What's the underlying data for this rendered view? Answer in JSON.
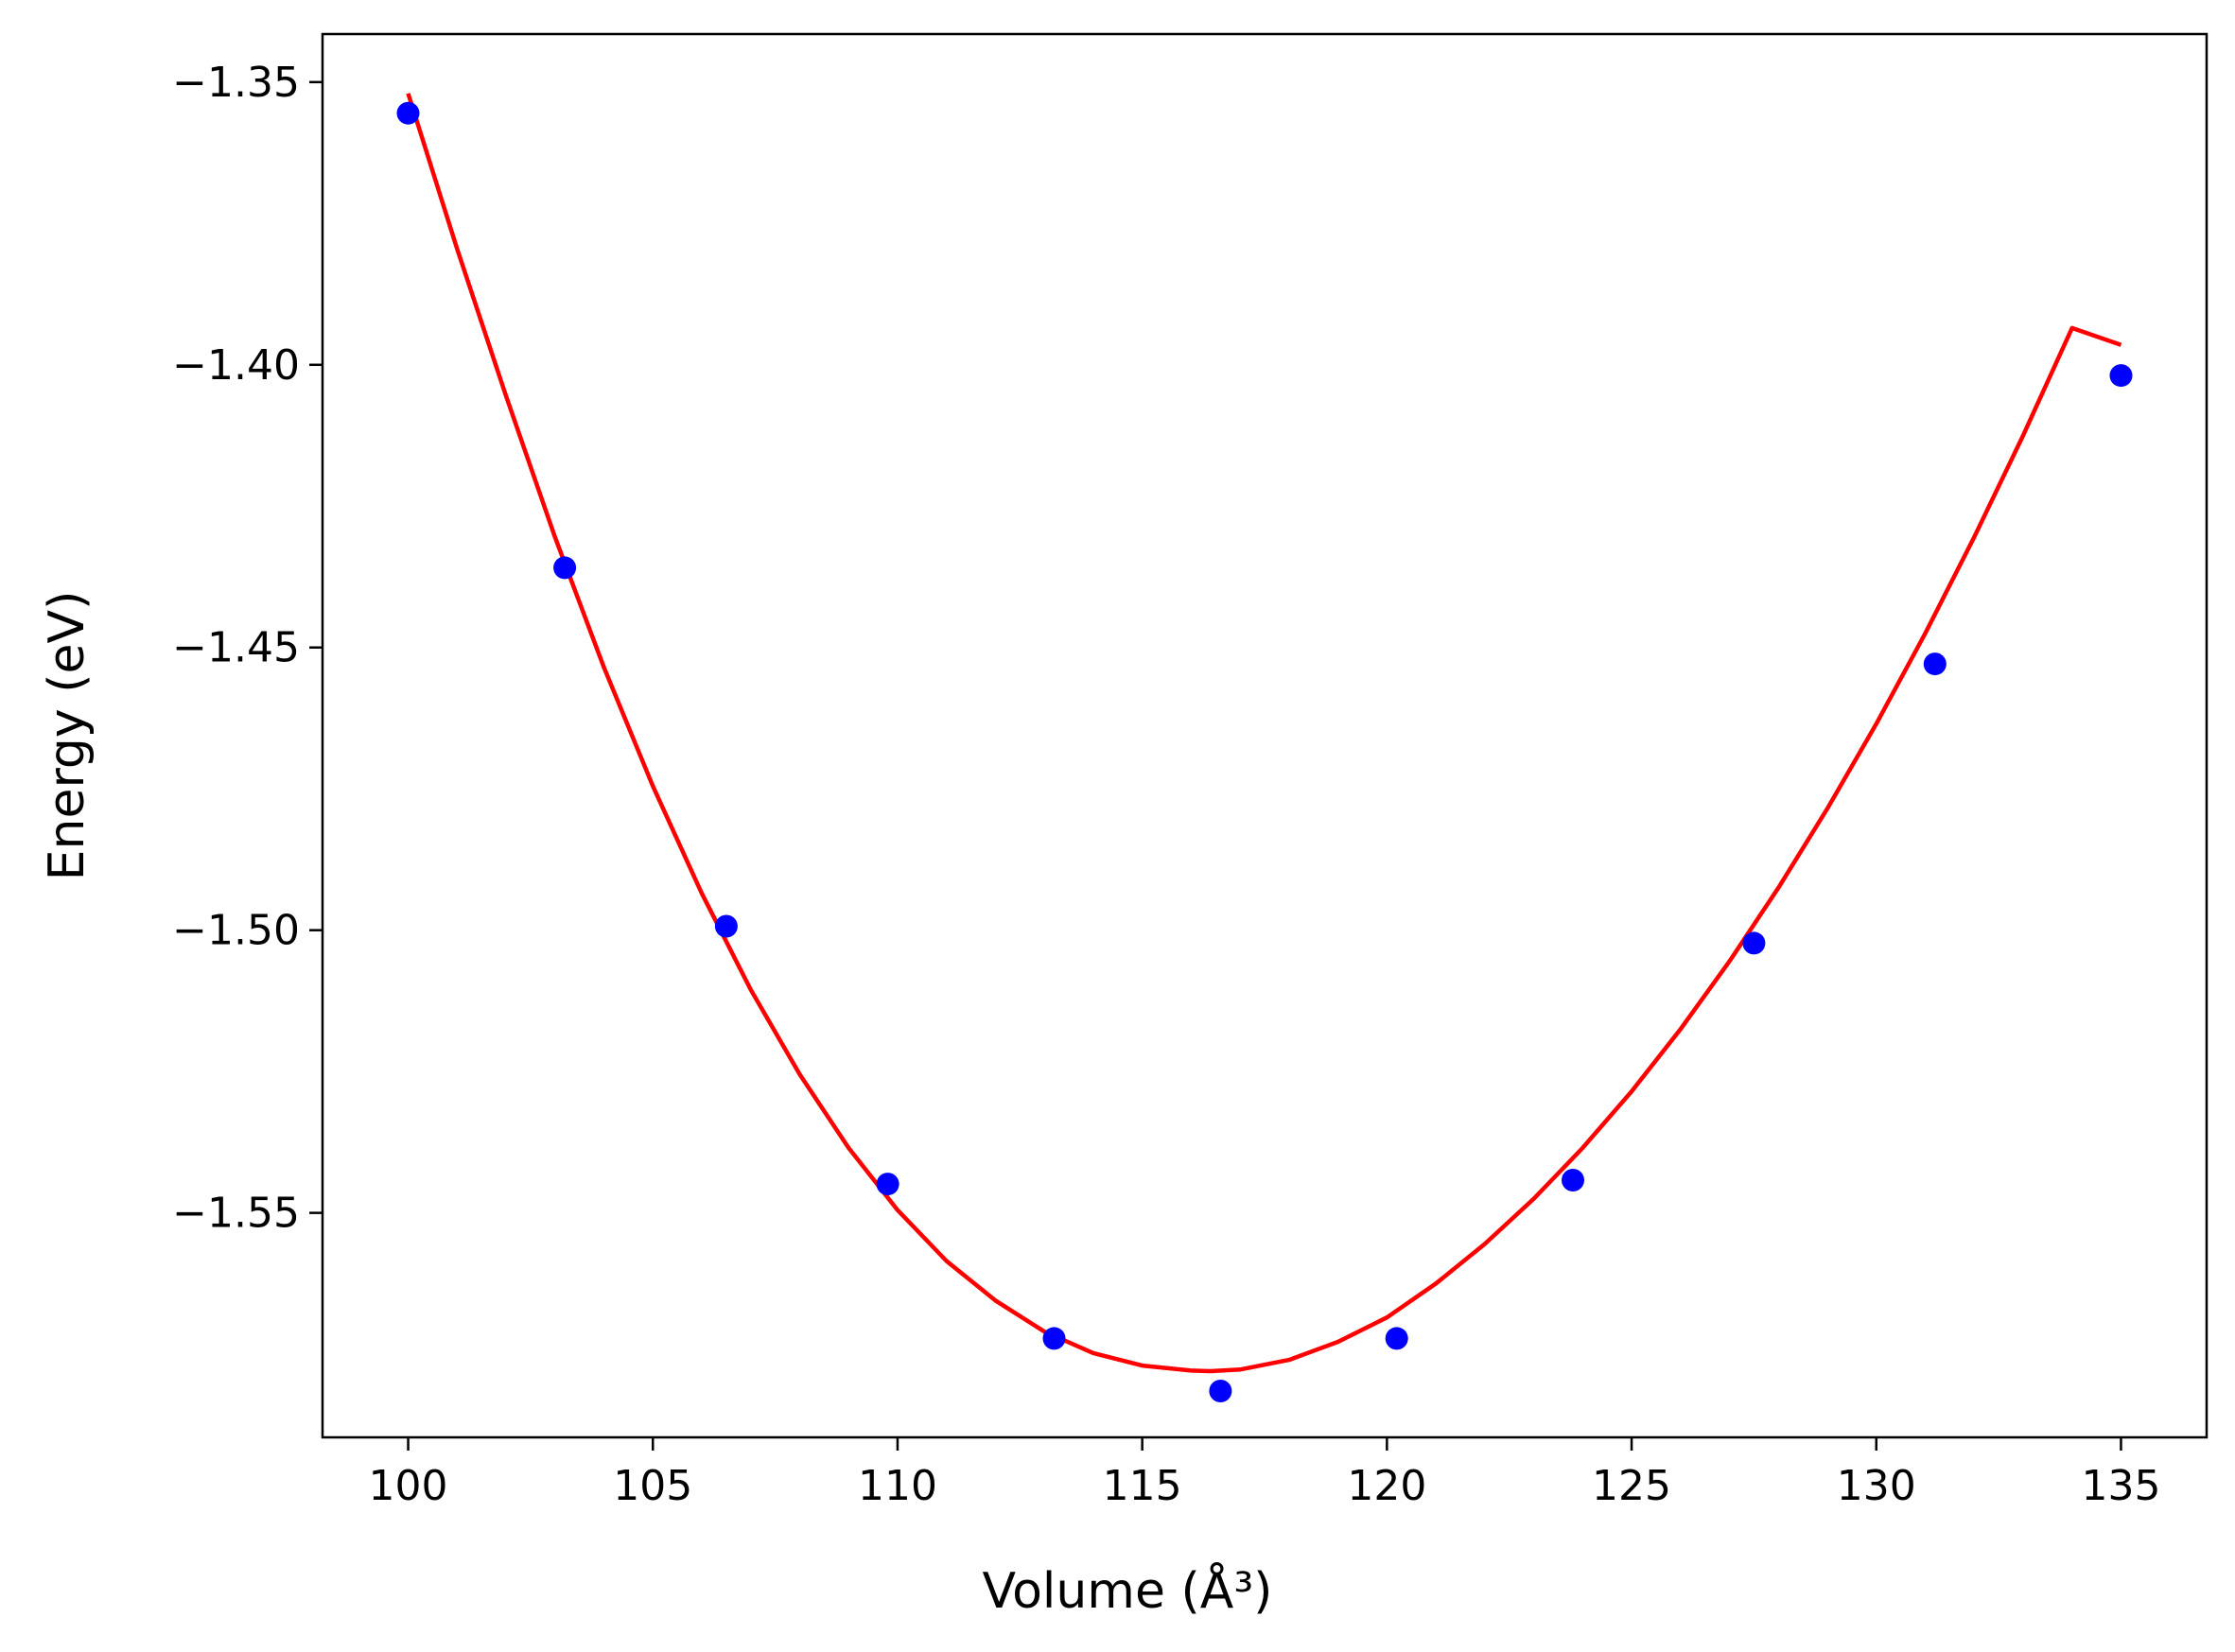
{
  "chart_data": {
    "type": "scatter",
    "xlabel": "Volume (Å³)",
    "ylabel": "Energy (eV)",
    "xlim": [
      98.25,
      136.75
    ],
    "ylim": [
      -1.5897,
      -1.3415
    ],
    "xticks": [
      100,
      105,
      110,
      115,
      120,
      125,
      130,
      135
    ],
    "yticks": [
      -1.35,
      -1.4,
      -1.45,
      -1.5,
      -1.55
    ],
    "xtick_labels": [
      "100",
      "105",
      "110",
      "115",
      "120",
      "125",
      "130",
      "135"
    ],
    "ytick_labels": [
      "−1.35",
      "−1.40",
      "−1.45",
      "−1.50",
      "−1.55"
    ],
    "grid": false,
    "series": [
      {
        "kind": "points",
        "color": "#0000ff",
        "x": [
          100.0,
          103.2,
          106.5,
          109.8,
          113.2,
          116.6,
          120.2,
          123.8,
          127.5,
          131.2,
          135.0
        ],
        "y": [
          -1.3555,
          -1.4359,
          -1.4993,
          -1.5449,
          -1.5722,
          -1.5815,
          -1.5722,
          -1.5442,
          -1.5023,
          -1.4529,
          -1.4019
        ]
      },
      {
        "kind": "fit-curve",
        "color": "#ff0000",
        "x": [
          100.0,
          101.0,
          102.0,
          103.0,
          104.0,
          105.0,
          106.0,
          107.0,
          108.0,
          109.0,
          110.0,
          111.0,
          112.0,
          113.0,
          114.0,
          115.0,
          116.0,
          116.4,
          117.0,
          118.0,
          119.0,
          120.0,
          121.0,
          122.0,
          123.0,
          124.0,
          125.0,
          126.0,
          127.0,
          128.0,
          129.0,
          130.0,
          131.0,
          132.0,
          133.0,
          134.0,
          135.0
        ],
        "y": [
          -1.352,
          -1.3795,
          -1.4055,
          -1.4305,
          -1.4535,
          -1.4745,
          -1.4935,
          -1.5105,
          -1.5255,
          -1.5385,
          -1.5495,
          -1.5585,
          -1.5655,
          -1.571,
          -1.5748,
          -1.577,
          -1.5779,
          -1.578,
          -1.5777,
          -1.576,
          -1.5728,
          -1.5685,
          -1.5625,
          -1.5555,
          -1.5475,
          -1.5385,
          -1.5285,
          -1.5175,
          -1.5055,
          -1.4925,
          -1.4785,
          -1.4635,
          -1.4475,
          -1.4305,
          -1.4125,
          -1.3935,
          -1.3965
        ]
      }
    ]
  }
}
